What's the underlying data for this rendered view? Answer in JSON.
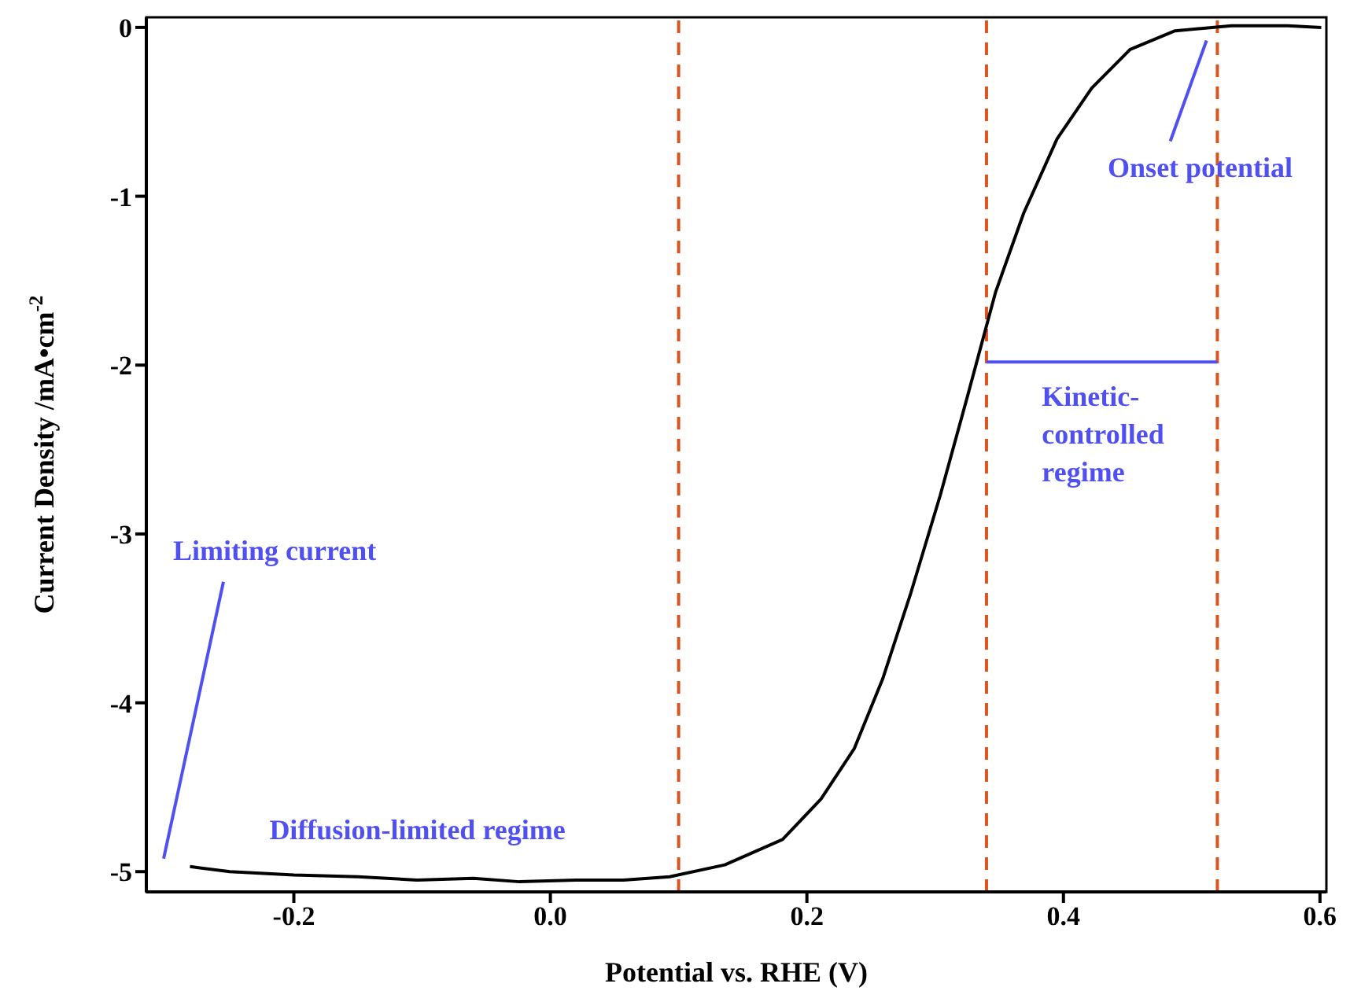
{
  "chart_data": {
    "type": "line",
    "xlabel": "Potential vs. RHE (V)",
    "ylabel": "Current Density /mA•cm$^{-2}$",
    "xlim": [
      -0.315,
      0.605
    ],
    "xticks": [
      -0.2,
      {
        "value": 0,
        "label": "0.0"
      },
      0.2,
      0.4,
      0.6
    ],
    "ylim": [
      -5.12,
      0.06
    ],
    "yticks": [
      0,
      -1,
      -2,
      -3,
      -4,
      -5
    ],
    "grid": false,
    "legend": false,
    "marker": "none",
    "line_style": "solid",
    "series": [
      {
        "color": "#000000",
        "x": [
          -0.281,
          -0.25,
          -0.2,
          -0.15,
          -0.104,
          -0.06,
          -0.024,
          0.02,
          0.057,
          0.093,
          0.136,
          0.181,
          0.211,
          0.237,
          0.259,
          0.281,
          0.304,
          0.325,
          0.347,
          0.369,
          0.395,
          0.422,
          0.452,
          0.487,
          0.531,
          0.575,
          0.601
        ],
        "values": [
          -4.97,
          -5.0,
          -5.02,
          -5.03,
          -5.05,
          -5.04,
          -5.06,
          -5.05,
          -5.05,
          -5.03,
          -4.96,
          -4.81,
          -4.57,
          -4.27,
          -3.86,
          -3.35,
          -2.77,
          -2.19,
          -1.57,
          -1.1,
          -0.66,
          -0.36,
          -0.13,
          -0.02,
          0.01,
          0.01,
          0.0
        ]
      }
    ],
    "ref_lines": [
      {
        "axis": "x",
        "value": 0.1,
        "color": "#d9541e",
        "line_style": "dashed"
      },
      {
        "axis": "x",
        "value": 0.34,
        "color": "#d9541e",
        "line_style": "dashed"
      },
      {
        "axis": "x",
        "value": 0.52,
        "color": "#d9541e",
        "line_style": "dashed"
      }
    ],
    "annotations": [
      {
        "text": "Onset potential",
        "x": 0.514,
        "y": -0.04
      },
      "Kinetic-controlled regime",
      "Limiting current",
      {
        "text": "Diffusion-limited regime",
        "x": -0.1,
        "y": -5.03
      }
    ]
  }
}
